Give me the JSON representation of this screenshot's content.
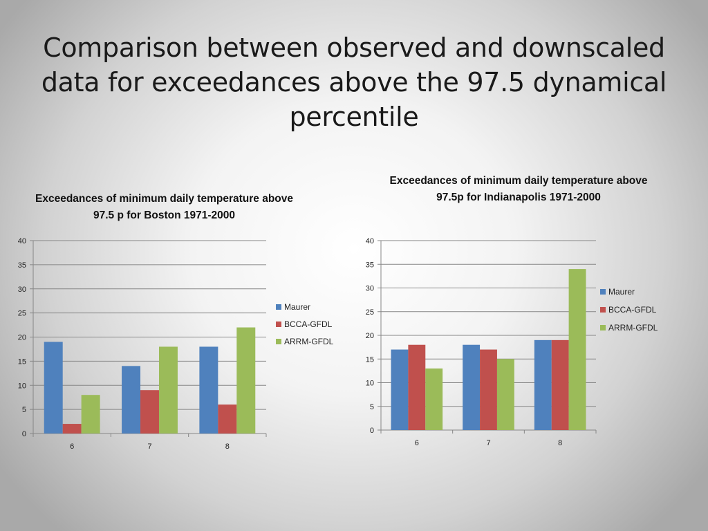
{
  "slide": {
    "title": "Comparison between observed and downscaled data for exceedances above the 97.5 dynamical percentile"
  },
  "chart_data": [
    {
      "type": "bar",
      "title": "Exceedances of minimum daily temperature above 97.5 p for Boston 1971-2000",
      "categories": [
        "6",
        "7",
        "8"
      ],
      "series": [
        {
          "name": "Maurer",
          "values": [
            19,
            14,
            18
          ],
          "color": "#4f81bd"
        },
        {
          "name": "BCCA-GFDL",
          "values": [
            2,
            9,
            6
          ],
          "color": "#c0504d"
        },
        {
          "name": "ARRM-GFDL",
          "values": [
            8,
            18,
            22
          ],
          "color": "#9bbb59"
        }
      ],
      "ylim": [
        0,
        40
      ],
      "yticks": [
        0,
        5,
        10,
        15,
        20,
        25,
        30,
        35,
        40
      ],
      "xlabel": "",
      "ylabel": "",
      "grid": true,
      "legend": "right"
    },
    {
      "type": "bar",
      "title": "Exceedances of minimum daily temperature above 97.5p for Indianapolis 1971-2000",
      "categories": [
        "6",
        "7",
        "8"
      ],
      "series": [
        {
          "name": "Maurer",
          "values": [
            17,
            18,
            19
          ],
          "color": "#4f81bd"
        },
        {
          "name": "BCCA-GFDL",
          "values": [
            18,
            17,
            19
          ],
          "color": "#c0504d"
        },
        {
          "name": "ARRM-GFDL",
          "values": [
            13,
            15,
            34
          ],
          "color": "#9bbb59"
        }
      ],
      "ylim": [
        0,
        40
      ],
      "yticks": [
        0,
        5,
        10,
        15,
        20,
        25,
        30,
        35,
        40
      ],
      "xlabel": "",
      "ylabel": "",
      "grid": true,
      "legend": "right"
    }
  ]
}
